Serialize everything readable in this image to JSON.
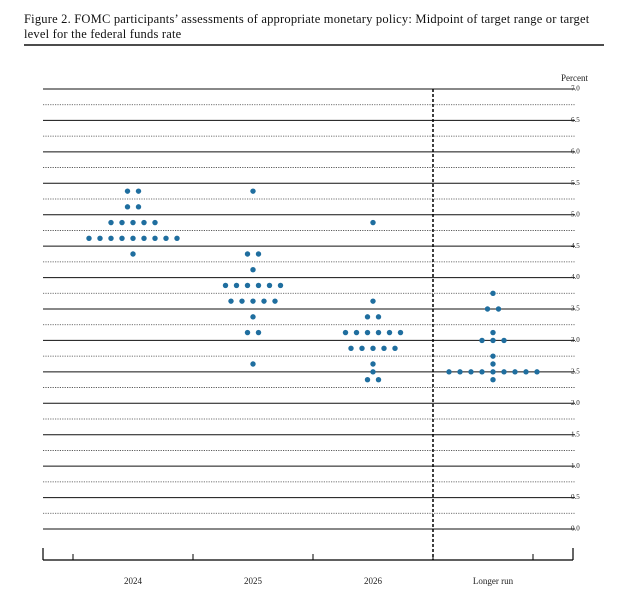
{
  "chart_data": {
    "type": "dot",
    "title": "Figure 2.  FOMC participants’ assessments of appropriate monetary policy: Midpoint of target range or target level for the federal funds rate",
    "y_label": "Percent",
    "categories": [
      "2024",
      "2025",
      "2026",
      "Longer run"
    ],
    "values": [
      [
        5.375,
        5.375,
        5.125,
        5.125,
        4.875,
        4.875,
        4.875,
        4.875,
        4.875,
        4.625,
        4.625,
        4.625,
        4.625,
        4.625,
        4.625,
        4.625,
        4.625,
        4.625,
        4.375
      ],
      [
        5.375,
        4.375,
        4.375,
        4.125,
        3.875,
        3.875,
        3.875,
        3.875,
        3.875,
        3.875,
        3.625,
        3.625,
        3.625,
        3.625,
        3.625,
        3.375,
        3.125,
        3.125,
        2.625
      ],
      [
        4.875,
        3.625,
        3.375,
        3.375,
        3.125,
        3.125,
        3.125,
        3.125,
        3.125,
        3.125,
        2.875,
        2.875,
        2.875,
        2.875,
        2.875,
        2.625,
        2.5,
        2.375,
        2.375
      ],
      [
        3.75,
        3.5,
        3.5,
        3.125,
        3.0,
        3.0,
        3.0,
        2.75,
        2.625,
        2.5,
        2.5,
        2.5,
        2.5,
        2.5,
        2.5,
        2.5,
        2.5,
        2.5,
        2.375
      ]
    ],
    "color": "#1f6e9f",
    "ylim": [
      0,
      7
    ],
    "yticks": [
      {
        "value": 0,
        "label": "0.0"
      },
      {
        "value": 0.5,
        "label": "0.5"
      },
      {
        "value": 1,
        "label": "1.0"
      },
      {
        "value": 1.5,
        "label": "1.5"
      },
      {
        "value": 2,
        "label": "2.0"
      },
      {
        "value": 2.5,
        "label": "2.5"
      },
      {
        "value": 3,
        "label": "3.0"
      },
      {
        "value": 3.5,
        "label": "3.5"
      },
      {
        "value": 4,
        "label": "4.0"
      },
      {
        "value": 4.5,
        "label": "4.5"
      },
      {
        "value": 5,
        "label": "5.0"
      },
      {
        "value": 5.5,
        "label": "5.5"
      },
      {
        "value": 6,
        "label": "6.0"
      },
      {
        "value": 6.5,
        "label": "6.5"
      },
      {
        "value": 7,
        "label": "7.0"
      }
    ],
    "yminor": [
      0.25,
      0.75,
      1.25,
      1.75,
      2.25,
      2.75,
      3.25,
      3.75,
      4.25,
      4.75,
      5.25,
      5.75,
      6.25,
      6.75
    ],
    "grid": true
  }
}
